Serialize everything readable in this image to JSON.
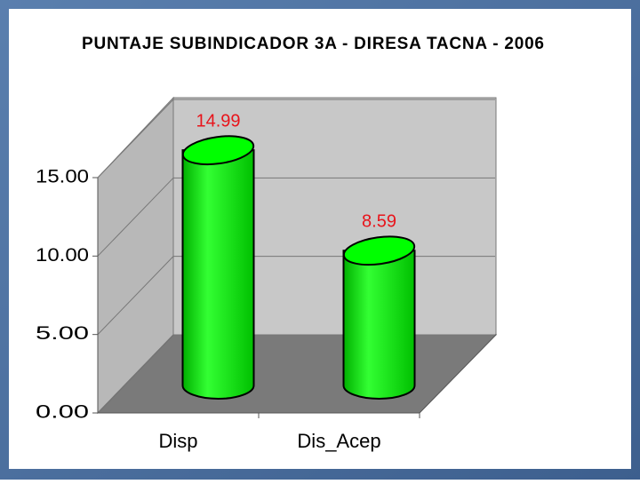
{
  "chart_data": {
    "type": "bar",
    "title": "PUNTAJE SUBINDICADOR 3A - DIRESA TACNA - 2006",
    "categories": [
      "Disp",
      "Dis_Acep"
    ],
    "values": [
      14.99,
      8.59
    ],
    "color": "#00ff00",
    "label_color": "#e8141b",
    "ylim": [
      0,
      15
    ],
    "yticks": [
      {
        "value": 0,
        "label": "0.00"
      },
      {
        "value": 5,
        "label": "5.00"
      },
      {
        "value": 10,
        "label": "10.00"
      },
      {
        "value": 15,
        "label": "15.00"
      }
    ],
    "grid": true
  }
}
